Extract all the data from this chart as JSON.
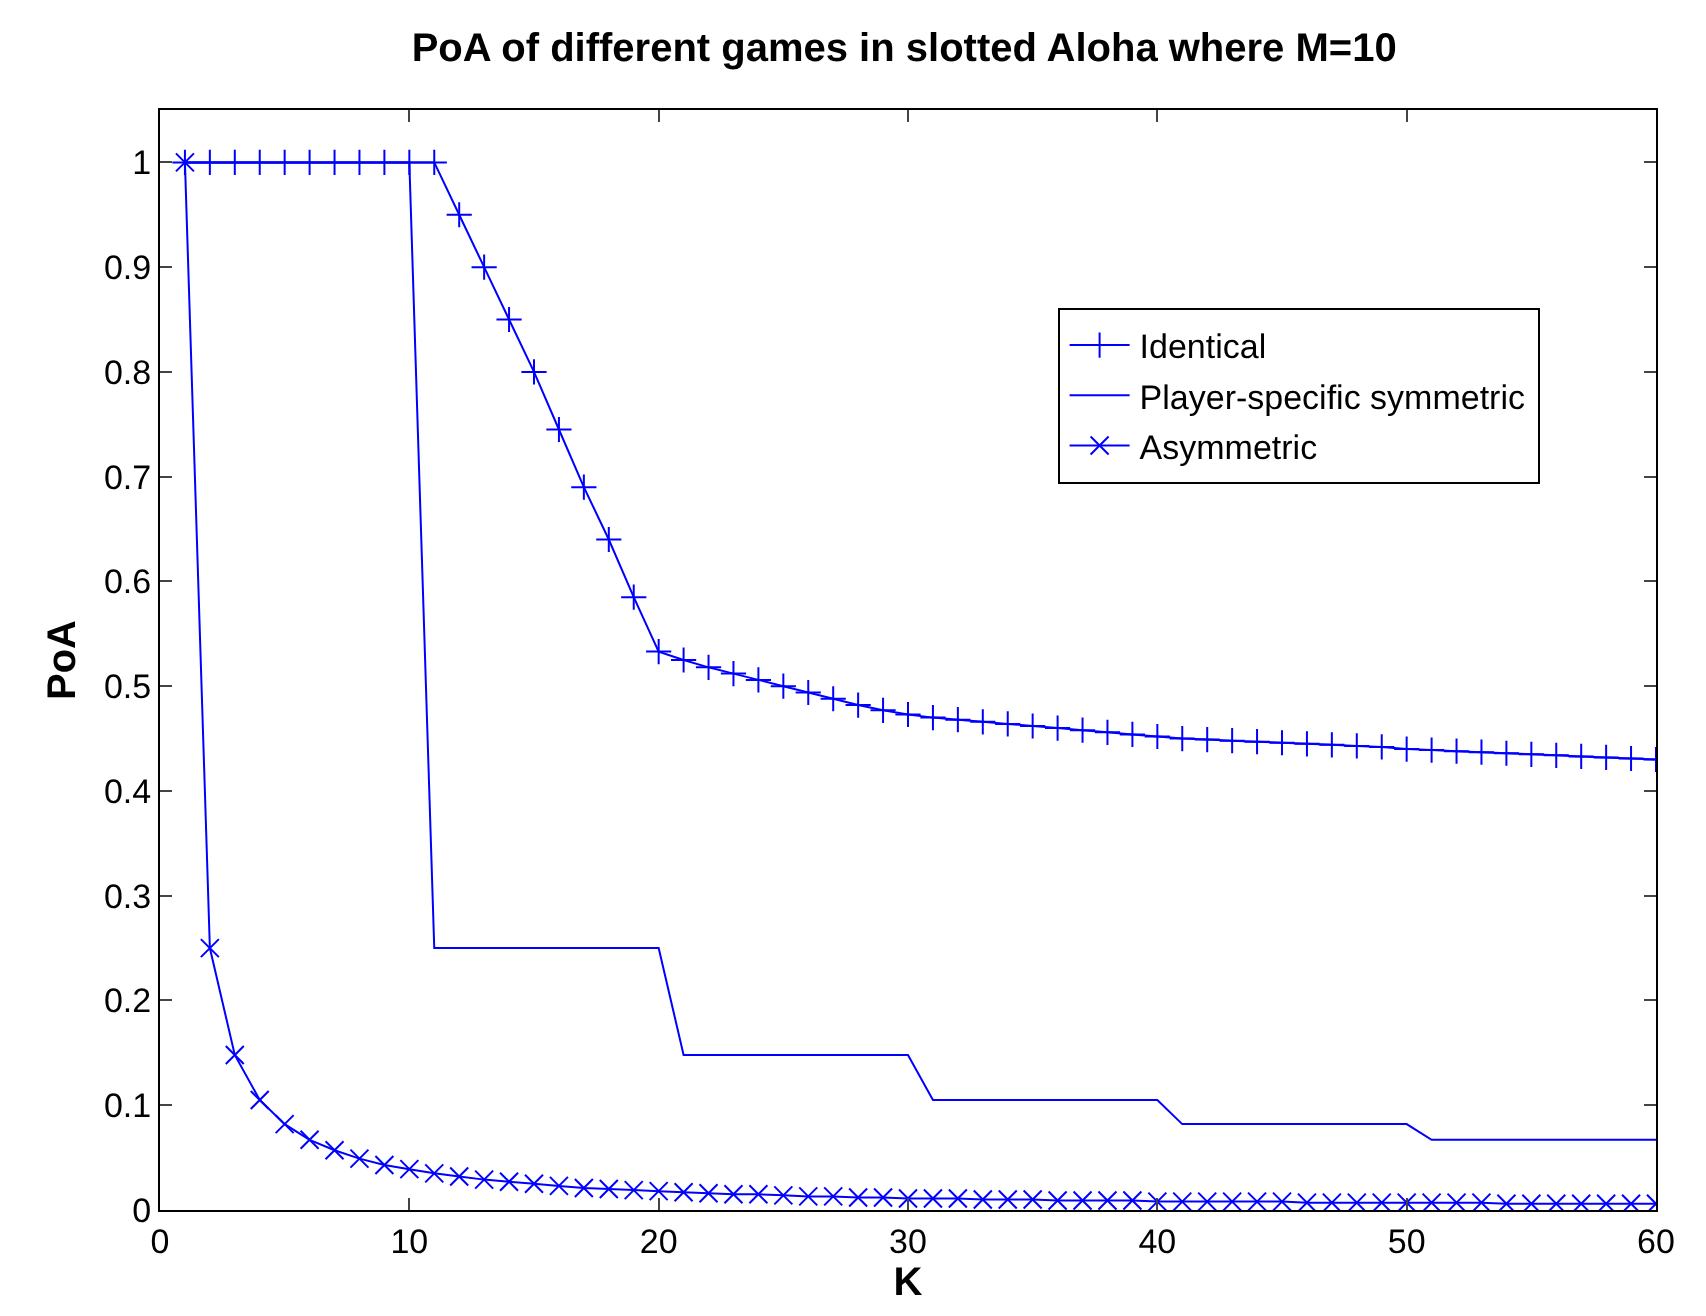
{
  "chart_data": {
    "type": "line",
    "title": "PoA of different games in slotted Aloha where M=10",
    "xlabel": "K",
    "ylabel": "PoA",
    "x": [
      1,
      2,
      3,
      4,
      5,
      6,
      7,
      8,
      9,
      10,
      11,
      12,
      13,
      14,
      15,
      16,
      17,
      18,
      19,
      20,
      21,
      22,
      23,
      24,
      25,
      26,
      27,
      28,
      29,
      30,
      31,
      32,
      33,
      34,
      35,
      36,
      37,
      38,
      39,
      40,
      41,
      42,
      43,
      44,
      45,
      46,
      47,
      48,
      49,
      50,
      51,
      52,
      53,
      54,
      55,
      56,
      57,
      58,
      59,
      60
    ],
    "series": [
      {
        "name": "Identical",
        "color": "#0000ff",
        "marker": "cross",
        "values": [
          1,
          1,
          1,
          1,
          1,
          1,
          1,
          1,
          1,
          1,
          1,
          0.95,
          0.9,
          0.85,
          0.8,
          0.745,
          0.69,
          0.64,
          0.585,
          0.533,
          0.525,
          0.518,
          0.512,
          0.506,
          0.5,
          0.494,
          0.488,
          0.482,
          0.477,
          0.473,
          0.47,
          0.468,
          0.466,
          0.464,
          0.462,
          0.46,
          0.458,
          0.456,
          0.454,
          0.452,
          0.45,
          0.449,
          0.448,
          0.447,
          0.446,
          0.445,
          0.444,
          0.443,
          0.442,
          0.44,
          0.439,
          0.438,
          0.437,
          0.436,
          0.435,
          0.434,
          0.433,
          0.432,
          0.431,
          0.43
        ]
      },
      {
        "name": "Player-specific symmetric",
        "color": "#0000ff",
        "marker": "none",
        "values": [
          1,
          1,
          1,
          1,
          1,
          1,
          1,
          1,
          1,
          1,
          0.25,
          0.25,
          0.25,
          0.25,
          0.25,
          0.25,
          0.25,
          0.25,
          0.25,
          0.25,
          0.148,
          0.148,
          0.148,
          0.148,
          0.148,
          0.148,
          0.148,
          0.148,
          0.148,
          0.148,
          0.105,
          0.105,
          0.105,
          0.105,
          0.105,
          0.105,
          0.105,
          0.105,
          0.105,
          0.105,
          0.082,
          0.082,
          0.082,
          0.082,
          0.082,
          0.082,
          0.082,
          0.082,
          0.082,
          0.082,
          0.067,
          0.067,
          0.067,
          0.067,
          0.067,
          0.067,
          0.067,
          0.067,
          0.067,
          0.067
        ]
      },
      {
        "name": "Asymmetric",
        "color": "#0000ff",
        "marker": "x",
        "values": [
          1,
          0.25,
          0.148,
          0.105,
          0.082,
          0.067,
          0.057,
          0.049,
          0.043,
          0.039,
          0.035,
          0.032,
          0.029,
          0.027,
          0.025,
          0.023,
          0.021,
          0.02,
          0.019,
          0.018,
          0.017,
          0.016,
          0.015,
          0.015,
          0.014,
          0.013,
          0.013,
          0.012,
          0.012,
          0.011,
          0.011,
          0.011,
          0.01,
          0.01,
          0.01,
          0.009,
          0.009,
          0.009,
          0.009,
          0.008,
          0.008,
          0.008,
          0.008,
          0.008,
          0.008,
          0.007,
          0.007,
          0.007,
          0.007,
          0.007,
          0.007,
          0.007,
          0.007,
          0.006,
          0.006,
          0.006,
          0.006,
          0.006,
          0.006,
          0.006
        ]
      }
    ],
    "xlim": [
      0,
      60
    ],
    "xticks": [
      0,
      10,
      20,
      30,
      40,
      50,
      60
    ],
    "ylim": [
      0,
      1.05
    ],
    "yticks": [
      0,
      0.1,
      0.2,
      0.3,
      0.4,
      0.5,
      0.6,
      0.7,
      0.8,
      0.9,
      1
    ],
    "legend": "top right",
    "line_style": "solid"
  }
}
